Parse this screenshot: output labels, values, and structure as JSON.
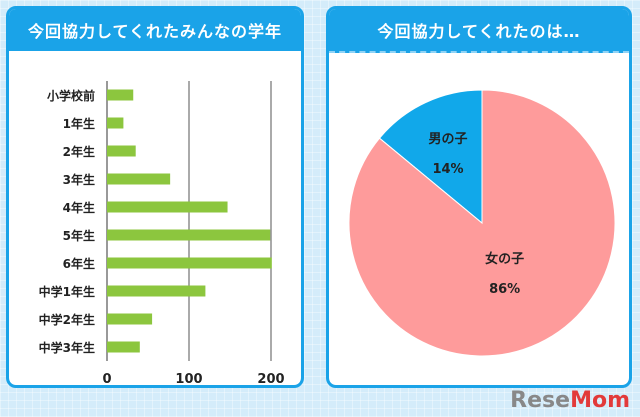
{
  "chart_data": [
    {
      "type": "bar",
      "orientation": "horizontal",
      "title": "今回協力してくれたみんなの学年",
      "categories": [
        "小学校前",
        "1年生",
        "2年生",
        "3年生",
        "4年生",
        "5年生",
        "6年生",
        "中学1年生",
        "中学2年生",
        "中学3年生"
      ],
      "values": [
        32,
        20,
        35,
        77,
        147,
        199,
        201,
        120,
        55,
        40
      ],
      "xlim": [
        0,
        200
      ],
      "xticks": [
        "0",
        "100",
        "200"
      ],
      "grid": true,
      "colors": {
        "bar": "#8cc63e"
      }
    },
    {
      "type": "pie",
      "title": "今回協力してくれたのは…",
      "slices": [
        {
          "label": "男の子",
          "value": 14,
          "value_label": "14%",
          "color": "#11a8ea"
        },
        {
          "label": "女の子",
          "value": 86,
          "value_label": "86%",
          "color": "#fe9b9b"
        }
      ]
    }
  ],
  "watermark": {
    "part1": "Rese",
    "part2": "Mom"
  }
}
